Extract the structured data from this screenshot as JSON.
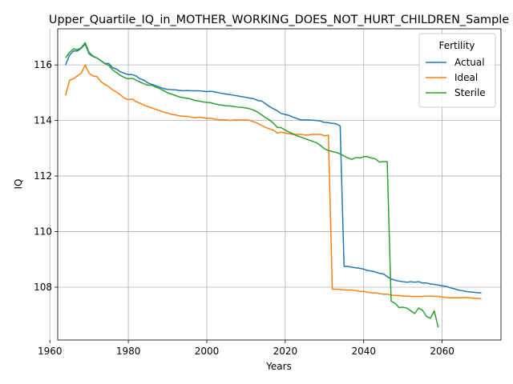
{
  "chart_data": {
    "type": "line",
    "title": "Upper_Quartile_IQ_in_MOTHER_WORKING_DOES_NOT_HURT_CHILDREN_Sample",
    "xlabel": "Years",
    "ylabel": "IQ",
    "xlim": [
      1962,
      2075
    ],
    "ylim": [
      106.1,
      117.3
    ],
    "xticks": [
      1960,
      1980,
      2000,
      2020,
      2040,
      2060
    ],
    "yticks": [
      108,
      110,
      112,
      114,
      116
    ],
    "grid": true,
    "legend": {
      "title": "Fertility",
      "placement": "top-right"
    },
    "series": [
      {
        "name": "Actual",
        "color": "#1f77b4",
        "points": [
          [
            1964,
            116.0
          ],
          [
            1965,
            116.35
          ],
          [
            1966,
            116.5
          ],
          [
            1967,
            116.5
          ],
          [
            1968,
            116.6
          ],
          [
            1969,
            116.75
          ],
          [
            1970,
            116.4
          ],
          [
            1971,
            116.3
          ],
          [
            1972,
            116.25
          ],
          [
            1973,
            116.15
          ],
          [
            1974,
            116.05
          ],
          [
            1975,
            116.05
          ],
          [
            1976,
            115.9
          ],
          [
            1977,
            115.85
          ],
          [
            1978,
            115.75
          ],
          [
            1979,
            115.7
          ],
          [
            1980,
            115.65
          ],
          [
            1981,
            115.65
          ],
          [
            1982,
            115.6
          ],
          [
            1983,
            115.5
          ],
          [
            1984,
            115.45
          ],
          [
            1985,
            115.35
          ],
          [
            1986,
            115.3
          ],
          [
            1987,
            115.25
          ],
          [
            1988,
            115.2
          ],
          [
            1989,
            115.15
          ],
          [
            1990,
            115.12
          ],
          [
            1992,
            115.1
          ],
          [
            1994,
            115.07
          ],
          [
            1995,
            115.08
          ],
          [
            1996,
            115.07
          ],
          [
            1998,
            115.07
          ],
          [
            2000,
            115.04
          ],
          [
            2001,
            115.05
          ],
          [
            2002,
            115.03
          ],
          [
            2004,
            114.97
          ],
          [
            2006,
            114.93
          ],
          [
            2008,
            114.88
          ],
          [
            2010,
            114.83
          ],
          [
            2012,
            114.78
          ],
          [
            2013,
            114.72
          ],
          [
            2014,
            114.7
          ],
          [
            2015,
            114.6
          ],
          [
            2016,
            114.5
          ],
          [
            2017,
            114.42
          ],
          [
            2018,
            114.35
          ],
          [
            2019,
            114.25
          ],
          [
            2020,
            114.22
          ],
          [
            2021,
            114.18
          ],
          [
            2022,
            114.12
          ],
          [
            2023,
            114.07
          ],
          [
            2024,
            114.02
          ],
          [
            2025,
            114.02
          ],
          [
            2026,
            114.02
          ],
          [
            2027,
            114.01
          ],
          [
            2028,
            114.0
          ],
          [
            2029,
            113.98
          ],
          [
            2030,
            113.93
          ],
          [
            2031,
            113.92
          ],
          [
            2032,
            113.9
          ],
          [
            2033,
            113.88
          ],
          [
            2034,
            113.8
          ],
          [
            2035,
            108.75
          ],
          [
            2036,
            108.75
          ],
          [
            2037,
            108.72
          ],
          [
            2038,
            108.7
          ],
          [
            2039,
            108.68
          ],
          [
            2040,
            108.65
          ],
          [
            2041,
            108.6
          ],
          [
            2042,
            108.58
          ],
          [
            2043,
            108.55
          ],
          [
            2044,
            108.5
          ],
          [
            2045,
            108.48
          ],
          [
            2046,
            108.38
          ],
          [
            2047,
            108.3
          ],
          [
            2048,
            108.25
          ],
          [
            2049,
            108.22
          ],
          [
            2050,
            108.2
          ],
          [
            2051,
            108.18
          ],
          [
            2052,
            108.2
          ],
          [
            2053,
            108.18
          ],
          [
            2054,
            108.2
          ],
          [
            2055,
            108.15
          ],
          [
            2056,
            108.15
          ],
          [
            2057,
            108.12
          ],
          [
            2058,
            108.1
          ],
          [
            2059,
            108.08
          ],
          [
            2060,
            108.05
          ],
          [
            2061,
            108.03
          ],
          [
            2062,
            107.98
          ],
          [
            2063,
            107.95
          ],
          [
            2064,
            107.9
          ],
          [
            2065,
            107.88
          ],
          [
            2066,
            107.85
          ],
          [
            2067,
            107.83
          ],
          [
            2068,
            107.82
          ],
          [
            2069,
            107.8
          ],
          [
            2070,
            107.8
          ]
        ]
      },
      {
        "name": "Ideal",
        "color": "#ff7f0e",
        "points": [
          [
            1964,
            114.9
          ],
          [
            1965,
            115.45
          ],
          [
            1966,
            115.5
          ],
          [
            1967,
            115.6
          ],
          [
            1968,
            115.7
          ],
          [
            1969,
            116.0
          ],
          [
            1970,
            115.7
          ],
          [
            1971,
            115.6
          ],
          [
            1972,
            115.58
          ],
          [
            1973,
            115.4
          ],
          [
            1974,
            115.3
          ],
          [
            1975,
            115.22
          ],
          [
            1976,
            115.1
          ],
          [
            1977,
            115.02
          ],
          [
            1978,
            114.92
          ],
          [
            1979,
            114.8
          ],
          [
            1980,
            114.75
          ],
          [
            1981,
            114.77
          ],
          [
            1982,
            114.68
          ],
          [
            1983,
            114.62
          ],
          [
            1984,
            114.55
          ],
          [
            1985,
            114.5
          ],
          [
            1986,
            114.45
          ],
          [
            1987,
            114.4
          ],
          [
            1988,
            114.35
          ],
          [
            1989,
            114.3
          ],
          [
            1990,
            114.27
          ],
          [
            1991,
            114.22
          ],
          [
            1992,
            114.2
          ],
          [
            1993,
            114.17
          ],
          [
            1994,
            114.15
          ],
          [
            1995,
            114.15
          ],
          [
            1996,
            114.12
          ],
          [
            1997,
            114.1
          ],
          [
            1998,
            114.12
          ],
          [
            1999,
            114.1
          ],
          [
            2000,
            114.08
          ],
          [
            2001,
            114.08
          ],
          [
            2002,
            114.05
          ],
          [
            2003,
            114.03
          ],
          [
            2004,
            114.02
          ],
          [
            2005,
            114.02
          ],
          [
            2006,
            114.0
          ],
          [
            2007,
            114.02
          ],
          [
            2008,
            114.02
          ],
          [
            2009,
            114.02
          ],
          [
            2010,
            114.02
          ],
          [
            2011,
            114.0
          ],
          [
            2012,
            113.95
          ],
          [
            2013,
            113.9
          ],
          [
            2014,
            113.82
          ],
          [
            2015,
            113.75
          ],
          [
            2016,
            113.7
          ],
          [
            2017,
            113.65
          ],
          [
            2018,
            113.55
          ],
          [
            2019,
            113.58
          ],
          [
            2020,
            113.55
          ],
          [
            2021,
            113.52
          ],
          [
            2022,
            113.5
          ],
          [
            2023,
            113.5
          ],
          [
            2024,
            113.5
          ],
          [
            2025,
            113.48
          ],
          [
            2026,
            113.48
          ],
          [
            2027,
            113.5
          ],
          [
            2028,
            113.5
          ],
          [
            2029,
            113.5
          ],
          [
            2030,
            113.45
          ],
          [
            2031,
            113.47
          ],
          [
            2032,
            107.93
          ],
          [
            2033,
            107.93
          ],
          [
            2034,
            107.92
          ],
          [
            2035,
            107.9
          ],
          [
            2036,
            107.9
          ],
          [
            2037,
            107.9
          ],
          [
            2038,
            107.88
          ],
          [
            2039,
            107.85
          ],
          [
            2040,
            107.85
          ],
          [
            2041,
            107.82
          ],
          [
            2042,
            107.8
          ],
          [
            2043,
            107.8
          ],
          [
            2044,
            107.77
          ],
          [
            2045,
            107.75
          ],
          [
            2046,
            107.75
          ],
          [
            2047,
            107.72
          ],
          [
            2048,
            107.7
          ],
          [
            2049,
            107.7
          ],
          [
            2050,
            107.68
          ],
          [
            2051,
            107.68
          ],
          [
            2052,
            107.67
          ],
          [
            2053,
            107.67
          ],
          [
            2054,
            107.67
          ],
          [
            2055,
            107.67
          ],
          [
            2056,
            107.68
          ],
          [
            2057,
            107.68
          ],
          [
            2058,
            107.67
          ],
          [
            2059,
            107.67
          ],
          [
            2060,
            107.65
          ],
          [
            2061,
            107.63
          ],
          [
            2062,
            107.62
          ],
          [
            2063,
            107.62
          ],
          [
            2064,
            107.62
          ],
          [
            2065,
            107.62
          ],
          [
            2066,
            107.63
          ],
          [
            2067,
            107.62
          ],
          [
            2068,
            107.6
          ],
          [
            2069,
            107.6
          ],
          [
            2070,
            107.58
          ]
        ]
      },
      {
        "name": "Sterile",
        "color": "#2ca02c",
        "points": [
          [
            1964,
            116.25
          ],
          [
            1965,
            116.45
          ],
          [
            1966,
            116.58
          ],
          [
            1967,
            116.55
          ],
          [
            1968,
            116.62
          ],
          [
            1969,
            116.8
          ],
          [
            1970,
            116.45
          ],
          [
            1971,
            116.32
          ],
          [
            1972,
            116.25
          ],
          [
            1973,
            116.15
          ],
          [
            1974,
            116.05
          ],
          [
            1975,
            115.98
          ],
          [
            1976,
            115.82
          ],
          [
            1977,
            115.72
          ],
          [
            1978,
            115.62
          ],
          [
            1979,
            115.55
          ],
          [
            1980,
            115.5
          ],
          [
            1981,
            115.52
          ],
          [
            1982,
            115.45
          ],
          [
            1983,
            115.38
          ],
          [
            1984,
            115.32
          ],
          [
            1985,
            115.27
          ],
          [
            1986,
            115.27
          ],
          [
            1987,
            115.2
          ],
          [
            1988,
            115.15
          ],
          [
            1989,
            115.07
          ],
          [
            1990,
            115.0
          ],
          [
            1991,
            114.95
          ],
          [
            1992,
            114.9
          ],
          [
            1993,
            114.85
          ],
          [
            1994,
            114.82
          ],
          [
            1995,
            114.8
          ],
          [
            1996,
            114.77
          ],
          [
            1997,
            114.72
          ],
          [
            1998,
            114.7
          ],
          [
            1999,
            114.67
          ],
          [
            2000,
            114.65
          ],
          [
            2001,
            114.64
          ],
          [
            2002,
            114.6
          ],
          [
            2003,
            114.57
          ],
          [
            2004,
            114.55
          ],
          [
            2005,
            114.53
          ],
          [
            2006,
            114.52
          ],
          [
            2007,
            114.5
          ],
          [
            2008,
            114.48
          ],
          [
            2009,
            114.47
          ],
          [
            2010,
            114.45
          ],
          [
            2011,
            114.42
          ],
          [
            2012,
            114.37
          ],
          [
            2013,
            114.3
          ],
          [
            2014,
            114.2
          ],
          [
            2015,
            114.1
          ],
          [
            2016,
            114.02
          ],
          [
            2017,
            113.9
          ],
          [
            2018,
            113.75
          ],
          [
            2019,
            113.74
          ],
          [
            2020,
            113.65
          ],
          [
            2021,
            113.58
          ],
          [
            2022,
            113.52
          ],
          [
            2023,
            113.45
          ],
          [
            2024,
            113.4
          ],
          [
            2025,
            113.35
          ],
          [
            2026,
            113.3
          ],
          [
            2027,
            113.25
          ],
          [
            2028,
            113.2
          ],
          [
            2029,
            113.1
          ],
          [
            2030,
            112.98
          ],
          [
            2031,
            112.92
          ],
          [
            2032,
            112.88
          ],
          [
            2033,
            112.85
          ],
          [
            2034,
            112.8
          ],
          [
            2035,
            112.72
          ],
          [
            2036,
            112.65
          ],
          [
            2037,
            112.6
          ],
          [
            2038,
            112.67
          ],
          [
            2039,
            112.65
          ],
          [
            2040,
            112.7
          ],
          [
            2041,
            112.7
          ],
          [
            2042,
            112.65
          ],
          [
            2043,
            112.62
          ],
          [
            2044,
            112.5
          ],
          [
            2045,
            112.52
          ],
          [
            2046,
            112.52
          ],
          [
            2047,
            107.5
          ],
          [
            2048,
            107.42
          ],
          [
            2049,
            107.27
          ],
          [
            2050,
            107.28
          ],
          [
            2051,
            107.25
          ],
          [
            2052,
            107.15
          ],
          [
            2053,
            107.05
          ],
          [
            2054,
            107.25
          ],
          [
            2055,
            107.17
          ],
          [
            2056,
            106.95
          ],
          [
            2057,
            106.88
          ],
          [
            2058,
            107.15
          ],
          [
            2059,
            106.55
          ]
        ]
      }
    ]
  }
}
